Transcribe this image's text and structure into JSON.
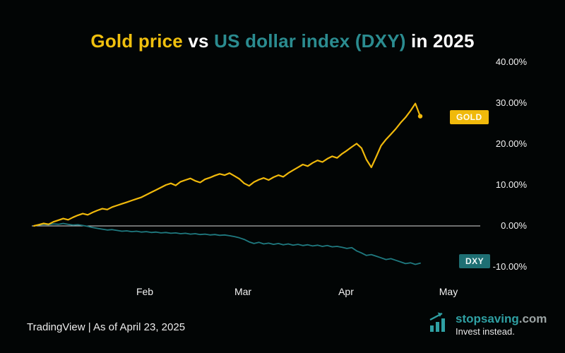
{
  "title": {
    "part1": "Gold price",
    "part2": " vs ",
    "part3": "US dollar index (DXY)",
    "part4": " in 2025"
  },
  "colors": {
    "gold": "#f0b90b",
    "teal": "#1f7a80",
    "zero_line": "#d9d9d9",
    "background": "#020505"
  },
  "badges": {
    "gold": "GOLD",
    "dxy": "DXY"
  },
  "footer": {
    "source": "TradingView | As of April 23, 2025"
  },
  "logo": {
    "brand": "stopsaving",
    "tld": ".com",
    "tagline": "Invest instead."
  },
  "chart_data": {
    "type": "line",
    "title": "Gold price vs US dollar index (DXY) in 2025",
    "xlabel": "",
    "ylabel": "",
    "ylim": [
      -10,
      40
    ],
    "grid": false,
    "legend_position": "right-badges",
    "y_ticks": [
      "40.00%",
      "30.00%",
      "20.00%",
      "10.00%",
      "0.00%",
      "-10.00%"
    ],
    "y_tick_values": [
      40,
      30,
      20,
      10,
      0,
      -10
    ],
    "x_ticks": [
      "Feb",
      "Mar",
      "Apr",
      "May"
    ],
    "series": [
      {
        "name": "GOLD",
        "color": "#f0b90b",
        "values": [
          0,
          0.3,
          0.6,
          0.4,
          1.0,
          1.4,
          1.8,
          1.5,
          2.1,
          2.6,
          3.0,
          2.7,
          3.3,
          3.8,
          4.2,
          4.0,
          4.6,
          5.0,
          5.4,
          5.8,
          6.2,
          6.6,
          7.0,
          7.6,
          8.2,
          8.8,
          9.4,
          10.0,
          10.4,
          9.9,
          10.8,
          11.2,
          11.6,
          11.0,
          10.6,
          11.4,
          11.8,
          12.3,
          12.7,
          12.4,
          12.9,
          12.2,
          11.5,
          10.4,
          9.8,
          10.7,
          11.3,
          11.7,
          11.2,
          11.9,
          12.4,
          12.0,
          12.9,
          13.6,
          14.3,
          15.0,
          14.6,
          15.4,
          16.0,
          15.6,
          16.4,
          17.0,
          16.6,
          17.6,
          18.4,
          19.3,
          20.1,
          19.0,
          16.2,
          14.3,
          16.9,
          19.6,
          21.1,
          22.4,
          23.7,
          25.2,
          26.5,
          28.1,
          29.9,
          26.8
        ]
      },
      {
        "name": "DXY",
        "color": "#1f7a80",
        "values": [
          0,
          0.2,
          0.4,
          0.3,
          0.5,
          0.4,
          0.6,
          0.4,
          0.2,
          0.3,
          0.1,
          -0.1,
          -0.4,
          -0.6,
          -0.8,
          -1.0,
          -0.9,
          -1.1,
          -1.3,
          -1.2,
          -1.4,
          -1.3,
          -1.5,
          -1.4,
          -1.6,
          -1.5,
          -1.7,
          -1.6,
          -1.8,
          -1.7,
          -1.9,
          -1.8,
          -2.0,
          -1.9,
          -2.1,
          -2.0,
          -2.2,
          -2.1,
          -2.3,
          -2.2,
          -2.4,
          -2.6,
          -2.9,
          -3.3,
          -3.9,
          -4.3,
          -4.0,
          -4.4,
          -4.2,
          -4.5,
          -4.3,
          -4.6,
          -4.4,
          -4.7,
          -4.5,
          -4.8,
          -4.6,
          -4.9,
          -4.7,
          -5.0,
          -4.8,
          -5.1,
          -5.0,
          -5.2,
          -5.5,
          -5.3,
          -6.1,
          -6.6,
          -7.2,
          -7.0,
          -7.4,
          -7.8,
          -8.2,
          -8.0,
          -8.4,
          -8.8,
          -9.2,
          -9.0,
          -9.4,
          -9.1
        ]
      }
    ]
  }
}
